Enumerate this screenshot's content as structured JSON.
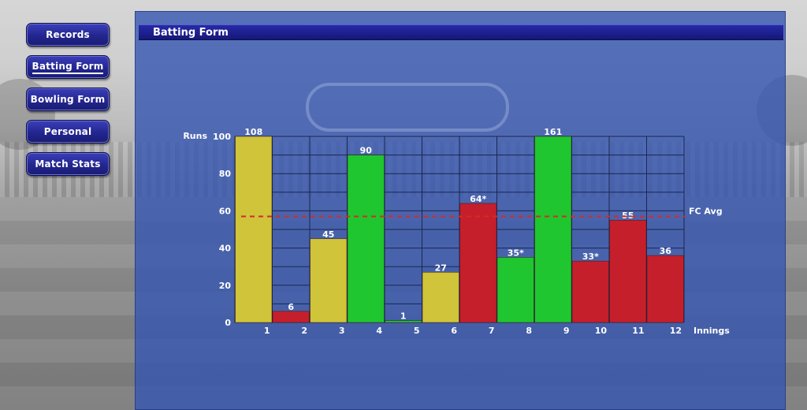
{
  "nav": {
    "items": [
      {
        "label": "Records",
        "active": false
      },
      {
        "label": "Batting Form",
        "active": true
      },
      {
        "label": "Bowling Form",
        "active": false
      },
      {
        "label": "Personal",
        "active": false
      },
      {
        "label": "Match Stats",
        "active": false
      }
    ]
  },
  "panel": {
    "title": "Batting Form"
  },
  "colors": {
    "yellow": "#cfc43a",
    "green": "#1fc62f",
    "red": "#c51f2c",
    "avg_line": "#d62a2a"
  },
  "chart_data": {
    "type": "bar",
    "ylabel": "Runs",
    "xlabel": "Innings",
    "ylim": [
      0,
      100
    ],
    "yticks": [
      0,
      20,
      40,
      60,
      80,
      100
    ],
    "categories": [
      "1",
      "2",
      "3",
      "4",
      "5",
      "6",
      "7",
      "8",
      "9",
      "10",
      "11",
      "12"
    ],
    "values": [
      108,
      6,
      45,
      90,
      1,
      27,
      64,
      35,
      161,
      33,
      55,
      36
    ],
    "value_labels": [
      "108",
      "6",
      "45",
      "90",
      "1",
      "27",
      "64*",
      "35*",
      "161",
      "33*",
      "55",
      "36"
    ],
    "bar_colors": [
      "yellow",
      "red",
      "yellow",
      "green",
      "green",
      "yellow",
      "red",
      "green",
      "green",
      "red",
      "red",
      "red"
    ],
    "reference_line": {
      "label": "FC Avg",
      "value": 57
    },
    "grid": true
  }
}
